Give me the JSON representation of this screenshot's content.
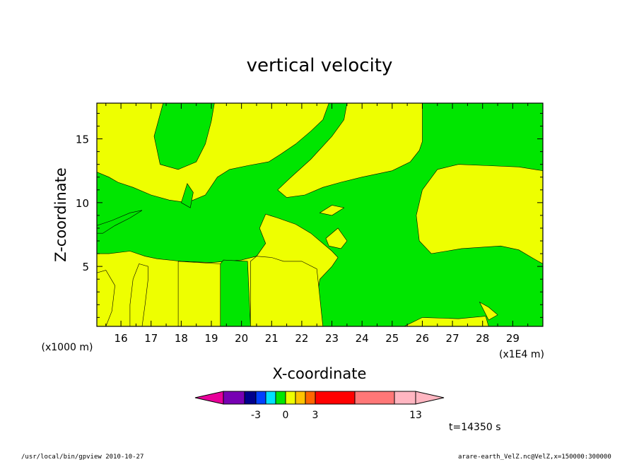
{
  "chart_data": {
    "type": "heatmap",
    "title": "vertical velocity",
    "xlabel": "X-coordinate",
    "ylabel": "Z-coordinate",
    "x_unit_label": "(x1E4 m)",
    "y_unit_label": "(x1000 m)",
    "xlim": [
      15.2,
      30
    ],
    "ylim": [
      0.3,
      17.8
    ],
    "x_ticks": [
      16,
      17,
      18,
      19,
      20,
      21,
      22,
      23,
      24,
      25,
      26,
      27,
      28,
      29
    ],
    "y_ticks": [
      5,
      10,
      15
    ],
    "fill_colors": {
      "positive": "#eeff00",
      "negative": "#00e600"
    },
    "regions": [
      {
        "sign": "negative",
        "points": [
          [
            15.2,
            12.4
          ],
          [
            15.6,
            12.0
          ],
          [
            15.9,
            11.6
          ],
          [
            16.4,
            11.2
          ],
          [
            17.0,
            10.6
          ],
          [
            17.6,
            10.2
          ],
          [
            18.2,
            10.0
          ],
          [
            18.8,
            10.6
          ],
          [
            19.2,
            12.0
          ],
          [
            19.6,
            12.6
          ],
          [
            20.2,
            12.9
          ],
          [
            20.9,
            13.2
          ],
          [
            21.3,
            13.8
          ],
          [
            21.8,
            14.6
          ],
          [
            22.3,
            15.6
          ],
          [
            22.7,
            16.5
          ],
          [
            22.9,
            17.8
          ],
          [
            23.5,
            17.8
          ],
          [
            23.4,
            16.5
          ],
          [
            23.0,
            15.2
          ],
          [
            22.3,
            13.4
          ],
          [
            21.6,
            11.9
          ],
          [
            21.2,
            11.0
          ],
          [
            21.5,
            10.4
          ],
          [
            22.1,
            10.6
          ],
          [
            22.7,
            11.2
          ],
          [
            23.3,
            11.6
          ],
          [
            24.0,
            12.0
          ],
          [
            25.0,
            12.5
          ],
          [
            25.6,
            13.2
          ],
          [
            25.9,
            14.1
          ],
          [
            26.0,
            14.8
          ],
          [
            26.0,
            17.8
          ],
          [
            30,
            17.8
          ],
          [
            30,
            12.5
          ],
          [
            29.2,
            12.8
          ],
          [
            28.2,
            12.9
          ],
          [
            27.2,
            13.0
          ],
          [
            26.5,
            12.6
          ],
          [
            26.0,
            11.0
          ],
          [
            25.8,
            9.0
          ],
          [
            25.9,
            7.0
          ],
          [
            26.3,
            6.0
          ],
          [
            27.3,
            6.4
          ],
          [
            28.6,
            6.6
          ],
          [
            29.2,
            6.3
          ],
          [
            29.7,
            5.6
          ],
          [
            30,
            5.2
          ],
          [
            30,
            0.3
          ],
          [
            28.2,
            0.3
          ],
          [
            28.1,
            1.1
          ],
          [
            27.2,
            0.9
          ],
          [
            26.0,
            1.0
          ],
          [
            25.4,
            0.3
          ],
          [
            22.7,
            0.3
          ],
          [
            22.5,
            2.5
          ],
          [
            22.6,
            4.0
          ],
          [
            23.0,
            5.0
          ],
          [
            23.2,
            5.7
          ],
          [
            23.0,
            6.2
          ],
          [
            22.7,
            6.8
          ],
          [
            22.3,
            7.6
          ],
          [
            21.8,
            8.3
          ],
          [
            21.2,
            8.8
          ],
          [
            20.8,
            9.1
          ],
          [
            20.6,
            8.0
          ],
          [
            20.8,
            6.8
          ],
          [
            20.5,
            5.8
          ],
          [
            20.0,
            5.5
          ],
          [
            19.0,
            5.3
          ],
          [
            18.0,
            5.4
          ],
          [
            17.2,
            5.6
          ],
          [
            16.8,
            5.8
          ],
          [
            16.3,
            6.2
          ],
          [
            15.6,
            6.0
          ],
          [
            15.2,
            6.0
          ]
        ]
      },
      {
        "sign": "negative",
        "points": [
          [
            17.4,
            17.8
          ],
          [
            17.1,
            15.2
          ],
          [
            17.3,
            13.0
          ],
          [
            17.9,
            12.6
          ],
          [
            18.5,
            13.2
          ],
          [
            18.8,
            14.6
          ],
          [
            19.0,
            16.4
          ],
          [
            19.1,
            17.8
          ]
        ]
      },
      {
        "sign": "positive",
        "points": [
          [
            17.9,
            5.4
          ],
          [
            19.3,
            5.2
          ],
          [
            19.3,
            0.3
          ],
          [
            17.9,
            0.3
          ]
        ]
      },
      {
        "sign": "negative",
        "points": [
          [
            19.3,
            5.2
          ],
          [
            19.4,
            5.5
          ],
          [
            20.2,
            5.4
          ],
          [
            20.3,
            0.3
          ],
          [
            19.3,
            0.3
          ]
        ]
      },
      {
        "sign": "positive",
        "points": [
          [
            20.3,
            5.4
          ],
          [
            20.5,
            5.8
          ],
          [
            21.0,
            5.7
          ],
          [
            21.4,
            5.4
          ],
          [
            22.0,
            5.4
          ],
          [
            22.5,
            4.8
          ],
          [
            22.7,
            0.3
          ],
          [
            20.3,
            0.3
          ]
        ]
      },
      {
        "sign": "positive",
        "points": [
          [
            16.7,
            0.3
          ],
          [
            16.8,
            2.0
          ],
          [
            16.9,
            4.0
          ],
          [
            16.9,
            5.0
          ],
          [
            16.6,
            5.2
          ],
          [
            16.4,
            4.0
          ],
          [
            16.3,
            2.0
          ],
          [
            16.3,
            0.3
          ]
        ]
      },
      {
        "sign": "negative",
        "points": [
          [
            15.2,
            8.2
          ],
          [
            15.7,
            8.6
          ],
          [
            16.3,
            9.2
          ],
          [
            16.7,
            9.4
          ],
          [
            16.3,
            8.8
          ],
          [
            15.8,
            8.2
          ],
          [
            15.4,
            7.6
          ],
          [
            15.2,
            7.6
          ]
        ]
      },
      {
        "sign": "positive",
        "points": [
          [
            15.2,
            4.5
          ],
          [
            15.5,
            4.7
          ],
          [
            15.8,
            3.5
          ],
          [
            15.7,
            1.5
          ],
          [
            15.5,
            0.3
          ],
          [
            15.2,
            0.3
          ]
        ]
      },
      {
        "sign": "positive",
        "points": [
          [
            22.6,
            9.2
          ],
          [
            23.0,
            9.8
          ],
          [
            23.4,
            9.6
          ],
          [
            23.0,
            9.0
          ]
        ]
      },
      {
        "sign": "positive",
        "points": [
          [
            22.8,
            7.2
          ],
          [
            23.2,
            8.0
          ],
          [
            23.5,
            7.0
          ],
          [
            23.3,
            6.4
          ],
          [
            22.9,
            6.6
          ]
        ]
      },
      {
        "sign": "negative",
        "points": [
          [
            18.0,
            10.0
          ],
          [
            18.2,
            11.5
          ],
          [
            18.4,
            10.8
          ],
          [
            18.3,
            9.6
          ]
        ]
      },
      {
        "sign": "positive",
        "points": [
          [
            27.9,
            2.2
          ],
          [
            28.2,
            1.8
          ],
          [
            28.5,
            1.2
          ],
          [
            28.2,
            0.8
          ]
        ]
      }
    ],
    "colorbar": {
      "colors": [
        "#e8009a",
        "#7700b3",
        "#00008c",
        "#0040ff",
        "#00e0ff",
        "#00e600",
        "#eeff00",
        "#ffc400",
        "#ff6600",
        "#ff0000",
        "#ff7777",
        "#ffb6c1"
      ],
      "tick_labels": [
        "-3",
        "0",
        "3",
        "13"
      ]
    },
    "time_label": "t=14350 s"
  },
  "footer": {
    "left": "/usr/local/bin/gpview   2010-10-27",
    "right": "arare-earth_VelZ.nc@VelZ,x=150000:300000"
  }
}
